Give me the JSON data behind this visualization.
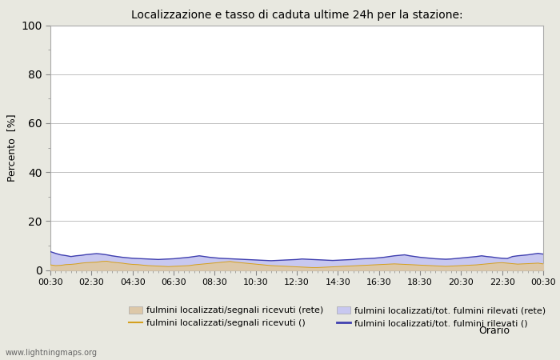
{
  "title": "Localizzazione e tasso di caduta ultime 24h per la stazione:",
  "xlabel": "Orario",
  "ylabel": "Percento  [%]",
  "ylim": [
    0,
    100
  ],
  "yticks": [
    0,
    20,
    40,
    60,
    80,
    100
  ],
  "yticks_minor": [
    10,
    30,
    50,
    70,
    90
  ],
  "x_labels": [
    "00:30",
    "02:30",
    "04:30",
    "06:30",
    "08:30",
    "10:30",
    "12:30",
    "14:30",
    "16:30",
    "18:30",
    "20:30",
    "22:30",
    "00:30"
  ],
  "fill_color_rete": "#ddc8a8",
  "fill_color_tot": "#c8c8f0",
  "line_color_segnali": "#d4a020",
  "line_color_tot": "#4040b0",
  "legend_labels": [
    "fulmini localizzati/segnali ricevuti (rete)",
    "fulmini localizzati/segnali ricevuti ()",
    "fulmini localizzati/tot. fulmini rilevati (rete)",
    "fulmini localizzati/tot. fulmini rilevati ()"
  ],
  "fig_background": "#e8e8e0",
  "plot_background": "#ffffff",
  "grid_color": "#c0c0c0",
  "watermark": "www.lightningmaps.org",
  "n_points": 97,
  "fill_rete_values": [
    2.1,
    1.8,
    1.9,
    2.2,
    2.3,
    2.5,
    2.8,
    3.0,
    3.1,
    3.2,
    3.5,
    3.6,
    3.2,
    3.0,
    2.8,
    2.5,
    2.3,
    2.2,
    2.0,
    1.8,
    1.7,
    1.6,
    1.5,
    1.4,
    1.5,
    1.6,
    1.7,
    1.8,
    2.1,
    2.3,
    2.5,
    2.7,
    2.9,
    3.1,
    3.3,
    3.5,
    3.2,
    3.0,
    2.8,
    2.6,
    2.4,
    2.2,
    2.0,
    1.8,
    1.7,
    1.6,
    1.5,
    1.4,
    1.3,
    1.2,
    1.1,
    1.0,
    1.0,
    1.1,
    1.2,
    1.3,
    1.4,
    1.5,
    1.6,
    1.7,
    1.8,
    1.9,
    2.0,
    2.1,
    2.2,
    2.3,
    2.4,
    2.5,
    2.4,
    2.3,
    2.2,
    2.1,
    2.0,
    1.9,
    1.8,
    1.7,
    1.6,
    1.5,
    1.6,
    1.7,
    1.8,
    1.9,
    2.0,
    2.1,
    2.3,
    2.5,
    2.7,
    2.9,
    3.0,
    2.8,
    2.6,
    2.4,
    2.5,
    2.6,
    2.7,
    2.8,
    2.5
  ],
  "fill_tot_values": [
    7.5,
    6.8,
    6.2,
    5.9,
    5.5,
    5.8,
    6.0,
    6.3,
    6.5,
    6.7,
    6.5,
    6.2,
    5.8,
    5.5,
    5.2,
    5.0,
    4.8,
    4.7,
    4.6,
    4.5,
    4.4,
    4.3,
    4.4,
    4.5,
    4.6,
    4.8,
    5.0,
    5.2,
    5.5,
    5.8,
    5.5,
    5.2,
    5.0,
    4.8,
    4.7,
    4.6,
    4.5,
    4.4,
    4.3,
    4.2,
    4.1,
    4.0,
    3.9,
    3.8,
    3.9,
    4.0,
    4.1,
    4.2,
    4.3,
    4.5,
    4.4,
    4.3,
    4.2,
    4.1,
    4.0,
    3.9,
    4.0,
    4.1,
    4.2,
    4.3,
    4.5,
    4.6,
    4.7,
    4.8,
    5.0,
    5.2,
    5.5,
    5.8,
    6.0,
    6.2,
    5.8,
    5.5,
    5.2,
    5.0,
    4.8,
    4.6,
    4.5,
    4.4,
    4.5,
    4.7,
    4.9,
    5.1,
    5.3,
    5.5,
    5.8,
    5.5,
    5.3,
    5.0,
    4.8,
    4.7,
    5.5,
    5.8,
    6.0,
    6.2,
    6.5,
    6.8,
    6.5
  ]
}
